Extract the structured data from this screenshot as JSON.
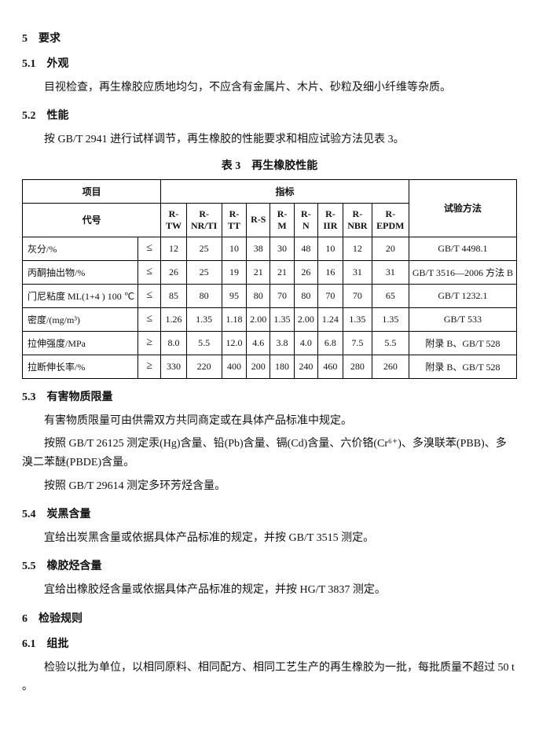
{
  "s5": {
    "num": "5",
    "title": "要求"
  },
  "s51": {
    "num": "5.1",
    "title": "外观",
    "p": "目视检查，再生橡胶应质地均匀，不应含有金属片、木片、砂粒及细小纤维等杂质。"
  },
  "s52": {
    "num": "5.2",
    "title": "性能",
    "p": "按 GB/T 2941 进行试样调节，再生橡胶的性能要求和相应试验方法见表 3。"
  },
  "tableTitle": "表 3　再生橡胶性能",
  "headers": {
    "item": "项目",
    "target": "指标",
    "method": "试验方法",
    "code": "代号",
    "c0": "R-TW",
    "c1": "R-NR/TI",
    "c2": "R-TT",
    "c3": "R-S",
    "c4": "R-M",
    "c5": "R-N",
    "c6": "R-IIR",
    "c7": "R-NBR",
    "c8": "R-EPDM"
  },
  "rows": [
    {
      "label": "灰分/%",
      "op": "≤",
      "v": [
        "12",
        "25",
        "10",
        "38",
        "30",
        "48",
        "10",
        "12",
        "20"
      ],
      "method": "GB/T 4498.1"
    },
    {
      "label": "丙酮抽出物/%",
      "op": "≤",
      "v": [
        "26",
        "25",
        "19",
        "21",
        "21",
        "26",
        "16",
        "31",
        "31"
      ],
      "method": "GB/T 3516—2006 方法 B"
    },
    {
      "label": "门尼粘度 ML(1+4 ) 100 ℃",
      "op": "≤",
      "v": [
        "85",
        "80",
        "95",
        "80",
        "70",
        "80",
        "70",
        "70",
        "65"
      ],
      "method": "GB/T 1232.1"
    },
    {
      "label": "密度/(mg/m³)",
      "op": "≤",
      "v": [
        "1.26",
        "1.35",
        "1.18",
        "2.00",
        "1.35",
        "2.00",
        "1.24",
        "1.35",
        "1.35"
      ],
      "method": "GB/T 533"
    },
    {
      "label": "拉伸强度/MPa",
      "op": "≥",
      "v": [
        "8.0",
        "5.5",
        "12.0",
        "4.6",
        "3.8",
        "4.0",
        "6.8",
        "7.5",
        "5.5"
      ],
      "method": "附录 B、GB/T 528"
    },
    {
      "label": "拉断伸长率/%",
      "op": "≥",
      "v": [
        "330",
        "220",
        "400",
        "200",
        "180",
        "240",
        "460",
        "280",
        "260"
      ],
      "method": "附录 B、GB/T 528"
    }
  ],
  "s53": {
    "num": "5.3",
    "title": "有害物质限量",
    "p1": "有害物质限量可由供需双方共同商定或在具体产品标准中规定。",
    "p2": "按照 GB/T 26125 测定汞(Hg)含量、铅(Pb)含量、镉(Cd)含量、六价铬(Cr⁶⁺)、多溴联苯(PBB)、多溴二苯醚(PBDE)含量。",
    "p3": "按照 GB/T 29614 测定多环芳烃含量。"
  },
  "s54": {
    "num": "5.4",
    "title": "炭黑含量",
    "p": "宜给出炭黑含量或依据具体产品标准的规定，并按 GB/T 3515 测定。"
  },
  "s55": {
    "num": "5.5",
    "title": "橡胶烃含量",
    "p": "宜给出橡胶烃含量或依据具体产品标准的规定，并按 HG/T 3837 测定。"
  },
  "s6": {
    "num": "6",
    "title": "检验规则"
  },
  "s61": {
    "num": "6.1",
    "title": "组批",
    "p": "检验以批为单位，以相同原料、相同配方、相同工艺生产的再生橡胶为一批，每批质量不超过 50 t 。"
  }
}
